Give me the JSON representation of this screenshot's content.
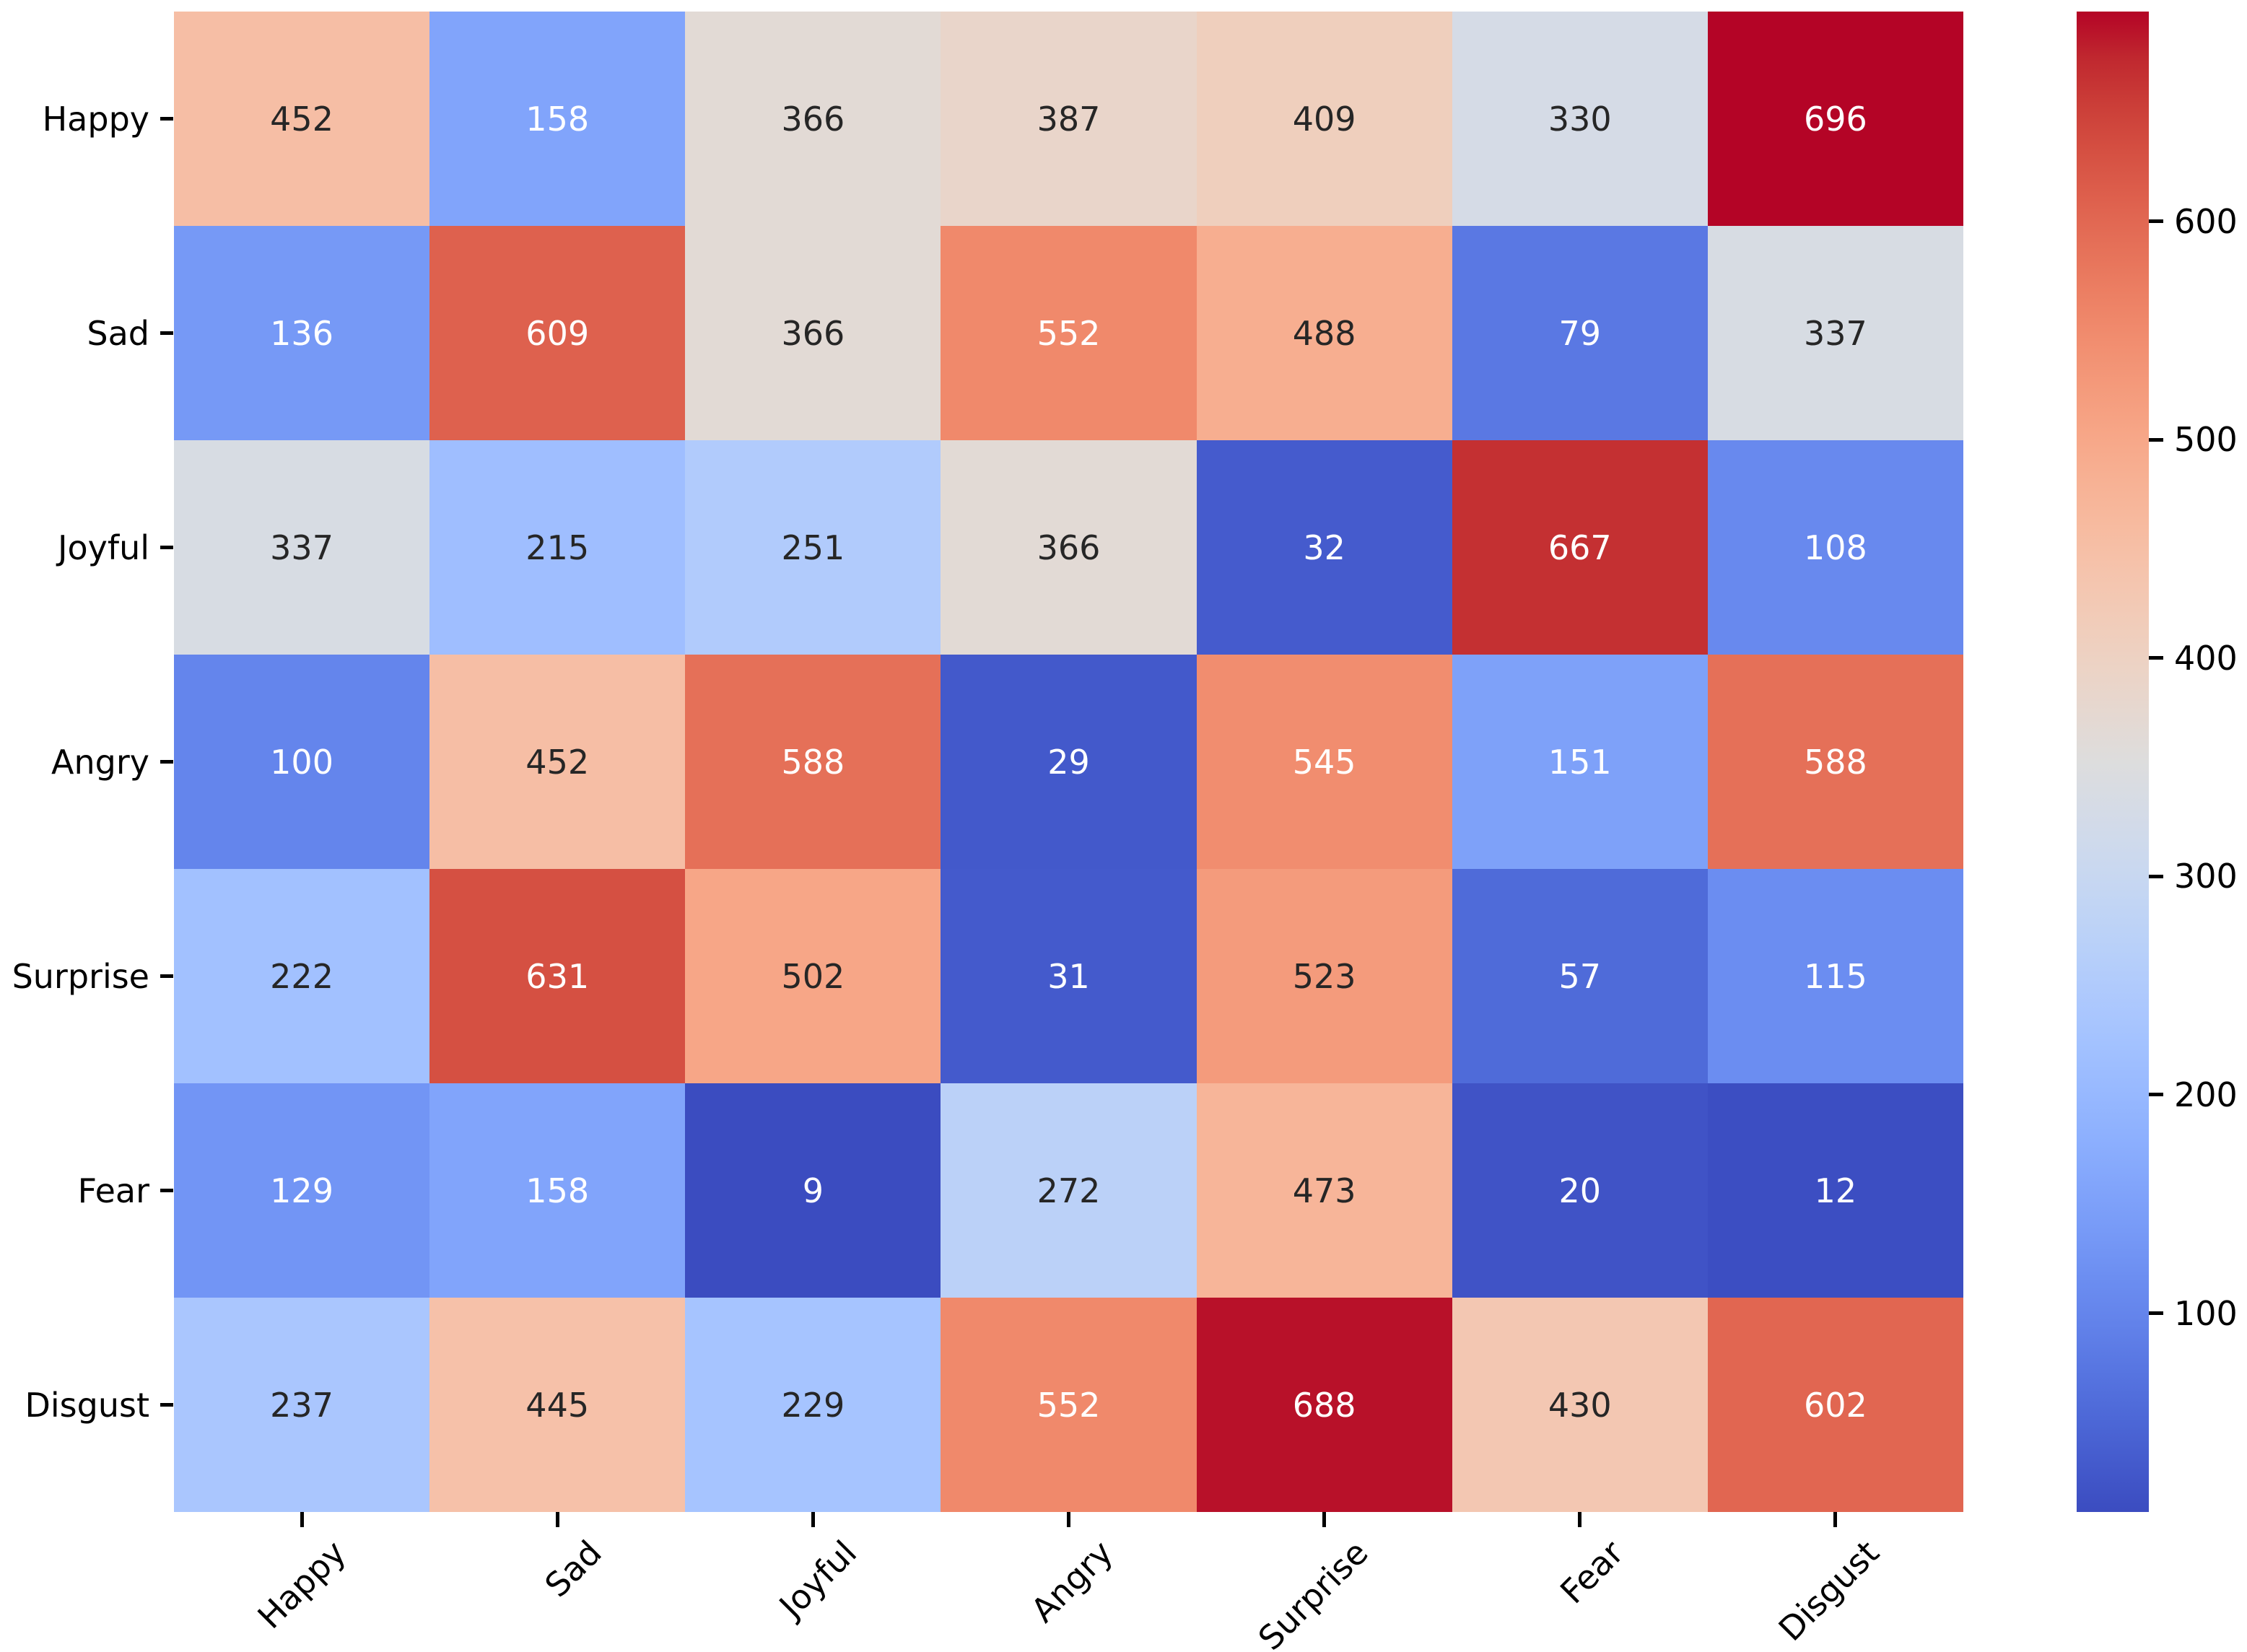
{
  "figure": {
    "background": "#ffffff",
    "annotation_dark_text_color": "#262626",
    "annotation_light_text_color": "#ffffff",
    "axis_text_color": "#000000"
  },
  "chart_data": {
    "type": "heatmap",
    "title": "",
    "xlabel": "",
    "ylabel": "",
    "y_categories": [
      "Happy",
      "Sad",
      "Joyful",
      "Angry",
      "Surprise",
      "Fear",
      "Disgust"
    ],
    "x_categories": [
      "Happy",
      "Sad",
      "Joyful",
      "Angry",
      "Surprise",
      "Fear",
      "Disgust"
    ],
    "values": [
      [
        452,
        158,
        366,
        387,
        409,
        330,
        696
      ],
      [
        136,
        609,
        366,
        552,
        488,
        79,
        337
      ],
      [
        337,
        215,
        251,
        366,
        32,
        667,
        108
      ],
      [
        100,
        452,
        588,
        29,
        545,
        151,
        588
      ],
      [
        222,
        631,
        502,
        31,
        523,
        57,
        115
      ],
      [
        129,
        158,
        9,
        272,
        473,
        20,
        12
      ],
      [
        237,
        445,
        229,
        552,
        688,
        430,
        602
      ]
    ],
    "annotated": true,
    "colormap": "coolwarm",
    "vmin": 9,
    "vmax": 696,
    "grid_lines": false,
    "x_tick_rotation_deg": 45,
    "colorbar": {
      "position": "right",
      "ticks": [
        100,
        200,
        300,
        400,
        500,
        600
      ]
    }
  }
}
